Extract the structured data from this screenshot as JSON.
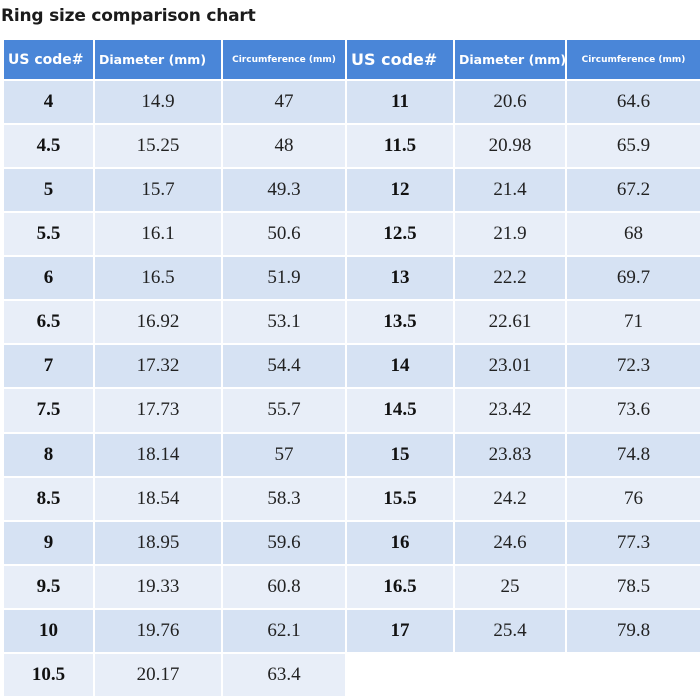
{
  "title": "Ring size comparison chart",
  "headers": [
    "US code#",
    "Diameter (mm)",
    "Circumference (mm)",
    "US code#",
    "Diameter (mm)",
    "Circumference (mm)"
  ],
  "left_rows": [
    [
      "4",
      "14.9",
      "47"
    ],
    [
      "4.5",
      "15.25",
      "48"
    ],
    [
      "5",
      "15.7",
      "49.3"
    ],
    [
      "5.5",
      "16.1",
      "50.6"
    ],
    [
      "6",
      "16.5",
      "51.9"
    ],
    [
      "6.5",
      "16.92",
      "53.1"
    ],
    [
      "7",
      "17.32",
      "54.4"
    ],
    [
      "7.5",
      "17.73",
      "55.7"
    ],
    [
      "8",
      "18.14",
      "57"
    ],
    [
      "8.5",
      "18.54",
      "58.3"
    ],
    [
      "9",
      "18.95",
      "59.6"
    ],
    [
      "9.5",
      "19.33",
      "60.8"
    ],
    [
      "10",
      "19.76",
      "62.1"
    ],
    [
      "10.5",
      "20.17",
      "63.4"
    ]
  ],
  "right_rows": [
    [
      "11",
      "20.6",
      "64.6"
    ],
    [
      "11.5",
      "20.98",
      "65.9"
    ],
    [
      "12",
      "21.4",
      "67.2"
    ],
    [
      "12.5",
      "21.9",
      "68"
    ],
    [
      "13",
      "22.2",
      "69.7"
    ],
    [
      "13.5",
      "22.61",
      "71"
    ],
    [
      "14",
      "23.01",
      "72.3"
    ],
    [
      "14.5",
      "23.42",
      "73.6"
    ],
    [
      "15",
      "23.83",
      "74.8"
    ],
    [
      "15.5",
      "24.2",
      "76"
    ],
    [
      "16",
      "24.6",
      "77.3"
    ],
    [
      "16.5",
      "25",
      "78.5"
    ],
    [
      "17",
      "25.4",
      "79.8"
    ]
  ]
}
